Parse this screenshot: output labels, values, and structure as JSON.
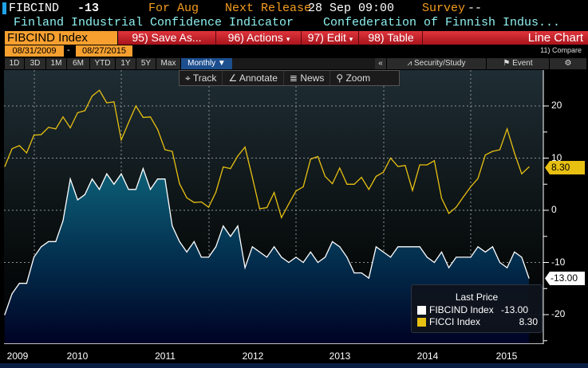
{
  "header": {
    "ticker": "FIBCIND",
    "last": "-13",
    "for_label": "For Aug",
    "next_release_label": "Next Release",
    "next_release_value": "28 Sep 09:00",
    "survey_label": "Survey",
    "survey_value": "--",
    "description": "Finland Industrial Confidence Indicator",
    "source": "Confederation of Finnish Indus..."
  },
  "toolbar": {
    "security": "FIBCIND Index",
    "save_as": "95) Save As...",
    "actions": "96) Actions",
    "edit": "97) Edit",
    "table": "98) Table",
    "chart_type": "Line Chart",
    "dropdown": "▾"
  },
  "dates": {
    "start": "08/31/2009",
    "sep": "-",
    "end": "08/27/2015",
    "compare": "11) Compare"
  },
  "periods": [
    "1D",
    "3D",
    "1M",
    "6M",
    "YTD",
    "1Y",
    "5Y",
    "Max"
  ],
  "frequency": "Monthly ▼",
  "right_tools": {
    "collapse": "«",
    "security_study": "Security/Study",
    "event": "Event"
  },
  "chart_tools": [
    "Track",
    "Annotate",
    "News",
    "Zoom"
  ],
  "legend": {
    "title": "Last Price",
    "items": [
      {
        "name": "FIBCIND Index",
        "value": "-13.00",
        "color": "#ffffff"
      },
      {
        "name": "FICCI Index",
        "value": "8.30",
        "color": "#e8c012"
      }
    ]
  },
  "tags": {
    "ficci": "8.30",
    "fibcind": "-13.00"
  },
  "chart_data": {
    "type": "line",
    "x_start": "2009-08",
    "frequency": "monthly",
    "ylim": [
      -24,
      27
    ],
    "yticks": [
      20,
      10,
      0,
      -10,
      -20
    ],
    "xtick_labels": [
      "2009",
      "2010",
      "2011",
      "2012",
      "2013",
      "2014",
      "2015"
    ],
    "grid": true,
    "series": [
      {
        "name": "FIBCIND Index",
        "style": "area",
        "color": "#ffffff",
        "values": [
          -20,
          -16,
          -14,
          -14,
          -9,
          -7,
          -6,
          -6,
          -2,
          6,
          2,
          3,
          6,
          4,
          7,
          5,
          7,
          4,
          4,
          8,
          4,
          6,
          6,
          -3,
          -6,
          -8,
          -6,
          -9,
          -9,
          -7,
          -3,
          -5,
          -3,
          -11,
          -7,
          -8,
          -9,
          -7,
          -9,
          -10,
          -9,
          -10,
          -8,
          -10,
          -9,
          -6,
          -7,
          -9,
          -12,
          -12,
          -13,
          -7,
          -8,
          -9,
          -7,
          -7,
          -7,
          -7,
          -9,
          -10,
          -8,
          -11,
          -9,
          -9,
          -9,
          -7,
          -8,
          -7,
          -10,
          -11,
          -8,
          -9,
          -13
        ]
      },
      {
        "name": "FICCI Index",
        "style": "line",
        "color": "#e8c012",
        "values": [
          8.4,
          11.8,
          12.4,
          11,
          14.4,
          14.5,
          15.9,
          15.6,
          17.9,
          15.8,
          18.7,
          19.1,
          21.9,
          23,
          20.6,
          20.8,
          13.5,
          16.8,
          20,
          17.8,
          17.9,
          15.5,
          11.6,
          11.3,
          5.1,
          2.4,
          1.5,
          1.6,
          0.6,
          3.5,
          8.3,
          8,
          10.4,
          12.1,
          6.3,
          0.3,
          0.5,
          3.4,
          -1.4,
          1.2,
          3.7,
          4.5,
          9.8,
          10.3,
          6.5,
          5.1,
          8.1,
          5,
          5,
          6.3,
          4,
          6.5,
          7.3,
          10,
          8.4,
          8.6,
          3.8,
          8.7,
          8.7,
          9.5,
          2.3,
          -0.6,
          0.6,
          2.6,
          4.5,
          6.1,
          10.6,
          11.3,
          11.6,
          15.6,
          11,
          7,
          8.3
        ]
      }
    ]
  }
}
